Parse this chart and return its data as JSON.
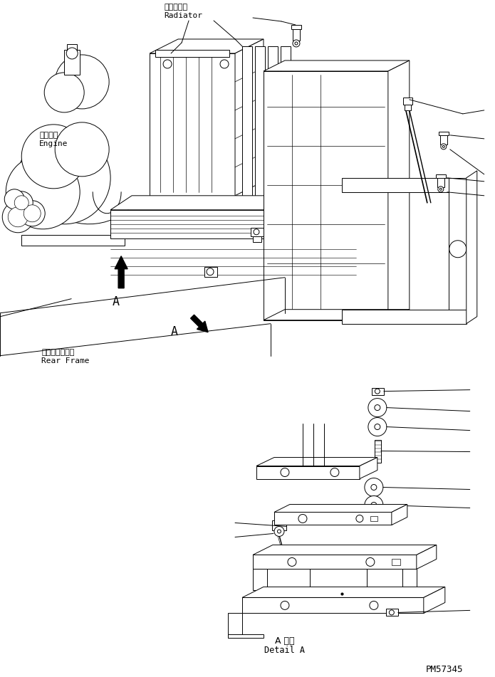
{
  "bg_color": "#ffffff",
  "lc": "#000000",
  "lw": 0.7,
  "label_radiator_jp": "ラジエータ",
  "label_radiator_en": "Radiator",
  "label_engine_jp": "エンジン",
  "label_engine_en": "Engine",
  "label_rearframe_jp": "リヤーフレーム",
  "label_rearframe_en": "Rear Frame",
  "label_detail_jp": "A 詳細",
  "label_detail_en": "Detail A",
  "label_pm": "PM57345",
  "label_A": "A",
  "fs": 7.5,
  "fs_pm": 9
}
